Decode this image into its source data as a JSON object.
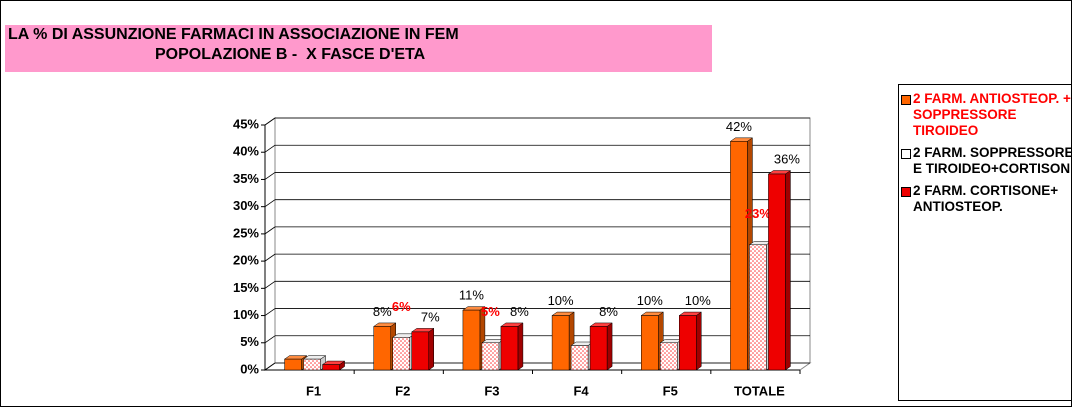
{
  "chart_data": {
    "type": "bar3d",
    "title": [
      "LA % DI ASSUNZIONE FARMACI IN ASSOCIAZIONE IN FEM",
      "POPOLAZIONE B -  X FASCE D'ETA"
    ],
    "categories": [
      "F1",
      "F2",
      "F3",
      "F4",
      "F5",
      "TOTALE"
    ],
    "series": [
      {
        "name": "2 FARM. ANTIOSTEOP. + SOPPRESSORE TIROIDEO",
        "color": "#ff6600",
        "label_color": "#000000",
        "legend_text_color": "#ff0000",
        "values": [
          2,
          8,
          11,
          10,
          10,
          42
        ],
        "value_labels": [
          null,
          "8%",
          "11%",
          "10%",
          "10%",
          "42%"
        ]
      },
      {
        "name": "2 FARM. SOPPRESSORE E TIROIDEO+CORTISONE",
        "color": "#ffffff",
        "label_color": "#ff0000",
        "legend_text_color": "#000000",
        "values": [
          2,
          6,
          5,
          4.5,
          5,
          23
        ],
        "value_labels": [
          null,
          "6%",
          "5%",
          null,
          null,
          "23%"
        ]
      },
      {
        "name": "2 FARM. CORTISONE+ ANTIOSTEOP.",
        "color": "#ee0000",
        "label_color": "#000000",
        "legend_text_color": "#000000",
        "values": [
          1,
          7,
          8,
          8,
          10,
          36
        ],
        "value_labels": [
          null,
          "7%",
          "8%",
          "8%",
          "10%",
          "36%"
        ]
      }
    ],
    "ylim": [
      0,
      45
    ],
    "yticks": [
      {
        "value": 0,
        "label": "0%"
      },
      {
        "value": 5,
        "label": "5%"
      },
      {
        "value": 10,
        "label": "10%"
      },
      {
        "value": 15,
        "label": "15%"
      },
      {
        "value": 20,
        "label": "20%"
      },
      {
        "value": 25,
        "label": "25%"
      },
      {
        "value": 30,
        "label": "30%"
      },
      {
        "value": 35,
        "label": "35%"
      },
      {
        "value": 40,
        "label": "40%"
      },
      {
        "value": 45,
        "label": "45%"
      }
    ],
    "grid": true
  }
}
